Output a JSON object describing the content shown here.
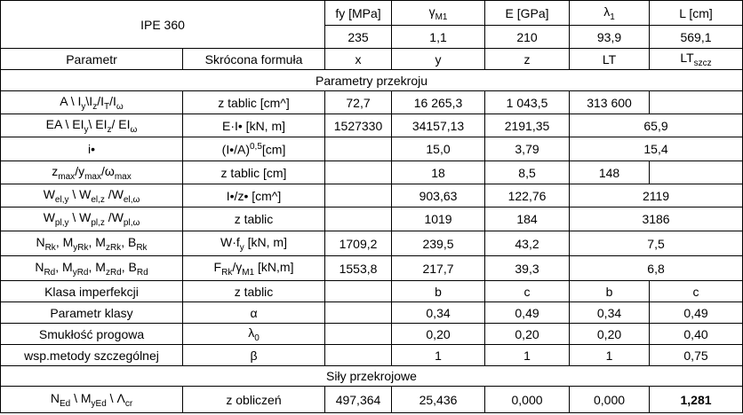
{
  "table": {
    "rows": [
      [
        "IPE 360",
        "fy [MPa]",
        [
          "γ",
          {
            "sub": "M1"
          }
        ],
        "E [GPa]",
        [
          "λ",
          {
            "sub": "1"
          }
        ],
        "L [cm]"
      ],
      [
        "235",
        "1,1",
        "210",
        "93,9",
        "569,1"
      ],
      [
        "Parametr",
        "Skrócona formuła",
        "x",
        "y",
        "z",
        "LT",
        [
          "LT",
          {
            "sub": "szcz"
          }
        ]
      ],
      [
        "Parametry przekroju"
      ],
      [
        [
          "A \\ I",
          {
            "sub": "y"
          },
          "\\I",
          {
            "sub": "z"
          },
          "/I",
          {
            "sub": "T"
          },
          "/I",
          {
            "sub": "ω"
          }
        ],
        "z tablic  [cm^]",
        "72,7",
        "16 265,3",
        "1 043,5",
        "313 600"
      ],
      [
        [
          "EA \\ EI",
          {
            "sub": "y"
          },
          "\\ EI",
          {
            "sub": "z"
          },
          "/ EI",
          {
            "sub": "ω"
          }
        ],
        "E·I• [kN, m]",
        "1527330",
        "34157,13",
        "2191,35",
        "65,9"
      ],
      [
        "i•",
        [
          "(I•/A)",
          {
            "sup": "0,5"
          },
          "[cm]"
        ],
        "15,0",
        "3,79",
        "15,4"
      ],
      [
        [
          "z",
          {
            "sub": "max"
          },
          "/y",
          {
            "sub": "max"
          },
          "/ω",
          {
            "sub": "max"
          }
        ],
        "z tablic [cm]",
        "18",
        "8,5",
        "148"
      ],
      [
        [
          "W",
          {
            "sub": "el,y"
          },
          " \\ W",
          {
            "sub": "el,z"
          },
          " /W",
          {
            "sub": "el,ω"
          }
        ],
        "I•/z• [cm^]",
        "903,63",
        "122,76",
        "2119"
      ],
      [
        [
          "W",
          {
            "sub": "pl,y"
          },
          " \\ W",
          {
            "sub": "pl,z"
          },
          " /W",
          {
            "sub": "pl,ω"
          }
        ],
        "z tablic",
        "1019",
        "184",
        "3186"
      ],
      [
        [
          "N",
          {
            "sub": "Rk"
          },
          ", M",
          {
            "sub": "yRk"
          },
          ", M",
          {
            "sub": "zRk"
          },
          ", B",
          {
            "sub": "Rk"
          }
        ],
        [
          "W·f",
          {
            "sub": "y"
          },
          "  [kN, m]"
        ],
        "1709,2",
        "239,5",
        "43,2",
        "7,5"
      ],
      [
        [
          "N",
          {
            "sub": "Rd"
          },
          ", M",
          {
            "sub": "yRd"
          },
          ", M",
          {
            "sub": "zRd"
          },
          ", B",
          {
            "sub": "Rd"
          }
        ],
        [
          "F",
          {
            "sub": "Rk"
          },
          "/γ",
          {
            "sub": "M1"
          },
          " [kN,m]"
        ],
        "1553,8",
        "217,7",
        "39,3",
        "6,8"
      ],
      [
        "Klasa imperfekcji",
        "z tablic",
        "b",
        "c",
        "b",
        "c"
      ],
      [
        "Parametr klasy",
        "α",
        "0,34",
        "0,49",
        "0,34",
        "0,49"
      ],
      [
        "Smukłość progowa",
        [
          "λ",
          {
            "sub": "0"
          }
        ],
        "0,20",
        "0,20",
        "0,20",
        "0,40"
      ],
      [
        "wsp.metody szczególnej",
        "β",
        "1",
        "1",
        "1",
        "0,75"
      ],
      [
        "Siły przekrojowe"
      ],
      [
        [
          "N",
          {
            "sub": "Ed"
          },
          " \\ M",
          {
            "sub": "yEd"
          },
          " \\ Λ",
          {
            "sub": "cr"
          }
        ],
        "z obliczeń",
        "497,364",
        "25,436",
        "0,000",
        "0,000",
        "1,281"
      ]
    ]
  }
}
